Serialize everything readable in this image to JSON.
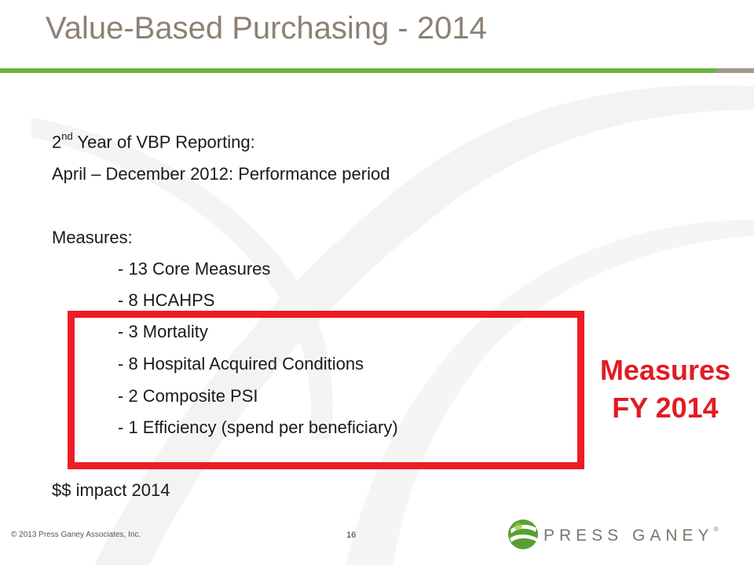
{
  "slide": {
    "title": "Value-Based Purchasing - 2014",
    "lines": {
      "year_num": "2",
      "year_sup": "nd",
      "year_rest": " Year of VBP Reporting:",
      "period": "April – December 2012: Performance period",
      "measures_heading": "Measures:"
    },
    "measures": [
      "- 13 Core Measures",
      "-  8 HCAHPS",
      "-  3 Mortality",
      "-  8 Hospital Acquired Conditions",
      "-  2 Composite PSI",
      "-  1 Efficiency (spend per beneficiary)"
    ],
    "impact": "$$ impact 2014",
    "callout": {
      "line1": "Measures",
      "line2": "FY 2014"
    }
  },
  "footer": {
    "copyright": "© 2013 Press Ganey Associates, Inc.",
    "page_number": "16",
    "logo_text": "PRESS GANEY",
    "logo_mark": "®"
  },
  "colors": {
    "title": "#8c8174",
    "rule_green": "#6cb33f",
    "highlight_red": "#ee1c25",
    "callout_red": "#e31b23"
  }
}
